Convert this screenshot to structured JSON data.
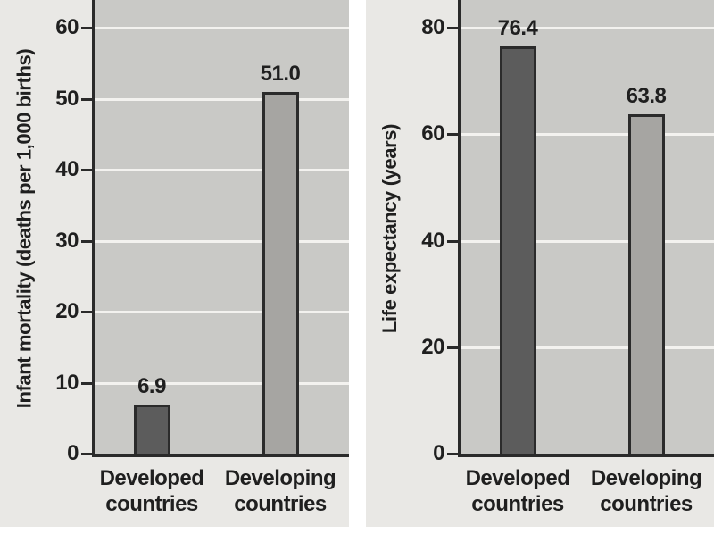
{
  "page": {
    "background": "#ffffff"
  },
  "palette": {
    "panel_bg": "#e9e8e5",
    "plot_bg": "#c9c9c6",
    "gridline": "#f3f2ef",
    "axis": "#2a2a2a",
    "text": "#1f1f1f",
    "bar_border": "#2b2b2b",
    "bar_dark": "#5c5c5c",
    "bar_light": "#a6a5a2"
  },
  "chart_data": [
    {
      "type": "bar",
      "title": "",
      "xlabel": "",
      "ylabel": "Infant mortality (deaths per 1,000 births)",
      "categories": [
        "Developed\ncountries",
        "Developing\ncountries"
      ],
      "values": [
        6.9,
        51.0
      ],
      "value_labels": [
        "6.9",
        "51.0"
      ],
      "yticks": [
        0,
        10,
        20,
        30,
        40,
        50,
        60
      ],
      "ylim": [
        0,
        64
      ],
      "grid": true,
      "legend": "none",
      "bar_style": [
        "dark",
        "light"
      ]
    },
    {
      "type": "bar",
      "title": "",
      "xlabel": "",
      "ylabel": "Life expectancy (years)",
      "categories": [
        "Developed\ncountries",
        "Developing\ncountries"
      ],
      "values": [
        76.4,
        63.8
      ],
      "value_labels": [
        "76.4",
        "63.8"
      ],
      "yticks": [
        0,
        20,
        40,
        60,
        80
      ],
      "ylim": [
        0,
        85
      ],
      "grid": true,
      "legend": "none",
      "bar_style": [
        "dark",
        "light"
      ]
    }
  ]
}
